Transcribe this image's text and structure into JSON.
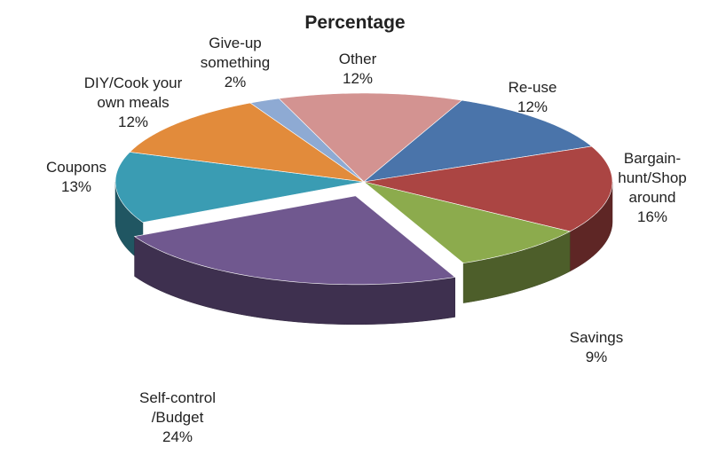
{
  "chart_data": {
    "type": "pie3d",
    "title": "Percentage",
    "categories": [
      "Other",
      "Re-use",
      "Bargain-hunt/Shop around",
      "Savings",
      "Self-control /Budget",
      "Coupons",
      "DIY/Cook your own meals",
      "Give-up something"
    ],
    "values": [
      12,
      12,
      16,
      9,
      24,
      13,
      12,
      2
    ],
    "value_labels": [
      "12%",
      "12%",
      "16%",
      "9%",
      "24%",
      "13%",
      "12%",
      "2%"
    ],
    "colors": [
      "#d39391",
      "#4a74aa",
      "#ab4543",
      "#8cab4d",
      "#70588f",
      "#3a9cb3",
      "#e28b3b",
      "#8eaad3"
    ]
  }
}
